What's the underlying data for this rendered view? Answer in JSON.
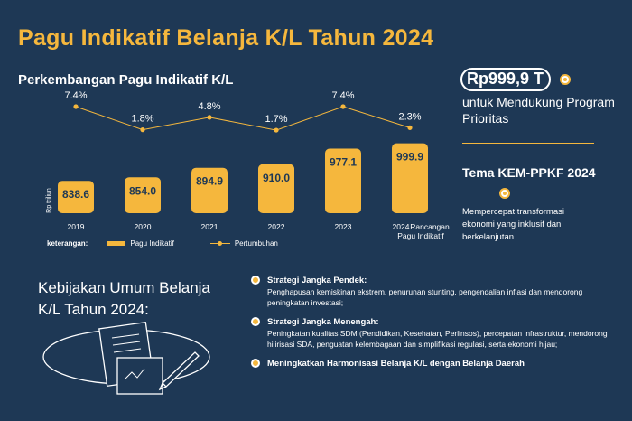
{
  "title": "Pagu Indikatif Belanja K/L Tahun 2024",
  "chart_data": {
    "type": "bar",
    "title": "Perkembangan Pagu Indikatif K/L",
    "ylabel": "Rp triliun",
    "categories": [
      "2019",
      "2020",
      "2021",
      "2022",
      "2023",
      "2024"
    ],
    "category_sublabel": "Rancangan Pagu Indikatif",
    "series": [
      {
        "name": "Pagu Indikatif",
        "type": "bar",
        "values": [
          838.6,
          854.0,
          894.9,
          910.0,
          977.1,
          999.9
        ],
        "labels": [
          "838.6",
          "854.0",
          "894.9",
          "910.0",
          "977.1",
          "999.9"
        ]
      },
      {
        "name": "Pertumbuhan",
        "type": "line",
        "values": [
          7.4,
          1.8,
          4.8,
          1.7,
          7.4,
          2.3
        ],
        "labels": [
          "7.4%",
          "1.8%",
          "4.8%",
          "1.7%",
          "7.4%",
          "2.3%"
        ]
      }
    ],
    "legend": {
      "keyword": "keterangan:",
      "placement": "bottom-left"
    },
    "colors": {
      "bar": "#f5b73d",
      "line": "#f5b73d",
      "background": "#1e3855"
    }
  },
  "highlight": {
    "amount": "Rp999,9 T",
    "caption": "untuk Mendukung Program Prioritas"
  },
  "tema": {
    "title": "Tema KEM-PPKF 2024",
    "description": "Mempercepat transformasi ekonomi yang inklusif dan berkelanjutan."
  },
  "policy": {
    "title": "Kebijakan Umum Belanja K/L Tahun 2024:",
    "items": [
      {
        "head": "Strategi Jangka Pendek:",
        "body": "Penghapusan kemiskinan ekstrem, penurunan stunting, pengendalian inflasi dan mendorong peningkatan investasi;"
      },
      {
        "head": "Strategi Jangka Menengah:",
        "body": "Peningkatan kualitas SDM (Pendidikan, Kesehatan, Perlinsos), percepatan infrastruktur, mendorong hilirisasi SDA, penguatan kelembagaan dan simplifikasi regulasi, serta ekonomi hijau;"
      },
      {
        "head": "Meningkatkan Harmonisasi Belanja K/L dengan Belanja Daerah",
        "body": ""
      }
    ]
  }
}
